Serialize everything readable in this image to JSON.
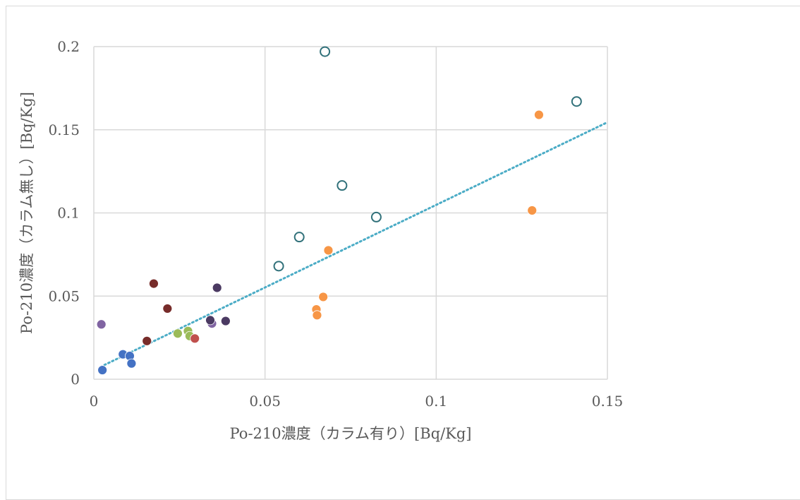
{
  "chart_data": {
    "type": "scatter",
    "title": "",
    "xlabel": "Po-210濃度（カラム有り）[Bq/Kg]",
    "ylabel": "Po-210濃度（カラム無し）[Bq/Kg]",
    "xlim": [
      0,
      0.15
    ],
    "ylim": [
      0,
      0.2
    ],
    "x_ticks": [
      "0",
      "0.05",
      "0.1",
      "0.15"
    ],
    "y_ticks": [
      "0",
      "0.05",
      "0.1",
      "0.15",
      "0.2"
    ],
    "grid": true,
    "legend": "none",
    "series": [
      {
        "color": "#4472c4",
        "marker": "filled",
        "points": [
          [
            0.0025,
            0.0055
          ],
          [
            0.0085,
            0.015
          ],
          [
            0.0105,
            0.014
          ],
          [
            0.011,
            0.0095
          ]
        ]
      },
      {
        "color": "#8064a2",
        "marker": "filled",
        "points": [
          [
            0.0022,
            0.033
          ],
          [
            0.0345,
            0.0335
          ]
        ]
      },
      {
        "color": "#772c2a",
        "marker": "filled",
        "points": [
          [
            0.0175,
            0.0575
          ],
          [
            0.0215,
            0.0425
          ],
          [
            0.0155,
            0.023
          ]
        ]
      },
      {
        "color": "#9bbb59",
        "marker": "filled",
        "points": [
          [
            0.0245,
            0.0275
          ],
          [
            0.0275,
            0.029
          ],
          [
            0.028,
            0.026
          ]
        ]
      },
      {
        "color": "#c0504d",
        "marker": "filled",
        "points": [
          [
            0.0295,
            0.0245
          ]
        ]
      },
      {
        "color": "#4b3a62",
        "marker": "filled",
        "points": [
          [
            0.036,
            0.055
          ],
          [
            0.034,
            0.0355
          ],
          [
            0.0385,
            0.035
          ]
        ]
      },
      {
        "color": "#f79646",
        "marker": "filled",
        "points": [
          [
            0.13,
            0.159
          ],
          [
            0.128,
            0.1015
          ],
          [
            0.0685,
            0.0775
          ],
          [
            0.067,
            0.0495
          ],
          [
            0.065,
            0.042
          ],
          [
            0.0652,
            0.0385
          ]
        ]
      },
      {
        "color": "#31717a",
        "marker": "open",
        "points": [
          [
            0.0675,
            0.197
          ],
          [
            0.141,
            0.167
          ],
          [
            0.0725,
            0.1165
          ],
          [
            0.0825,
            0.0975
          ],
          [
            0.06,
            0.0855
          ],
          [
            0.054,
            0.068
          ]
        ]
      }
    ],
    "trendline": {
      "type": "linear",
      "style": "dotted",
      "color": "#4bacc6",
      "x_range": [
        0.002,
        0.15
      ],
      "y_range": [
        0.0075,
        0.1545
      ]
    }
  }
}
